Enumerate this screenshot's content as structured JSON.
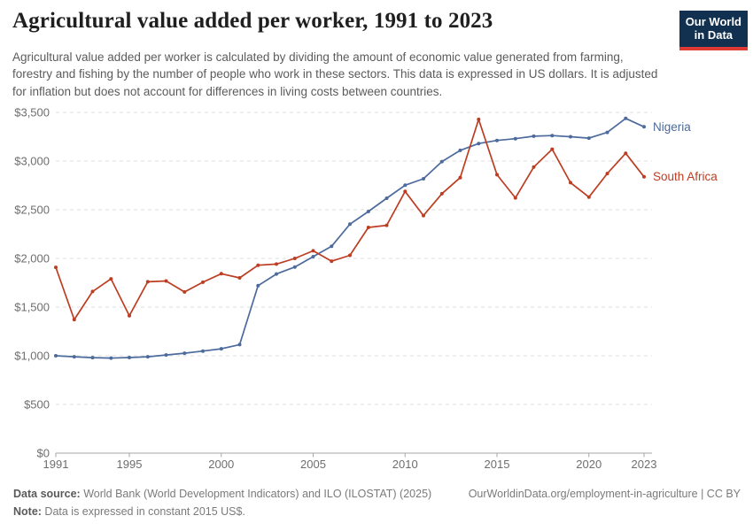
{
  "header": {
    "title": "Agricultural value added per worker, 1991 to 2023",
    "subtitle": "Agricultural value added per worker is calculated by dividing the amount of economic value generated from farming, forestry and fishing by the number of people who work in these sectors. This data is expressed in US dollars. It is adjusted for inflation but does not account for differences in living costs between countries.",
    "logo": {
      "line1": "Our World",
      "line2": "in Data"
    }
  },
  "chart_data": {
    "type": "line",
    "title": "Agricultural value added per worker, 1991 to 2023",
    "unit": "constant 2015 US$",
    "x_range": [
      1991,
      2023
    ],
    "years": [
      1991,
      1992,
      1993,
      1994,
      1995,
      1996,
      1997,
      1998,
      1999,
      2000,
      2001,
      2002,
      2003,
      2004,
      2005,
      2006,
      2007,
      2008,
      2009,
      2010,
      2011,
      2012,
      2013,
      2014,
      2015,
      2016,
      2017,
      2018,
      2019,
      2020,
      2021,
      2022,
      2023
    ],
    "series": [
      {
        "name": "Nigeria",
        "color": "#4C6A9C",
        "values": [
          1000,
          990,
          981,
          976,
          982,
          990,
          1008,
          1026,
          1048,
          1072,
          1115,
          1720,
          1840,
          1912,
          2018,
          2125,
          2352,
          2482,
          2618,
          2752,
          2818,
          2995,
          3110,
          3180,
          3212,
          3230,
          3255,
          3262,
          3250,
          3235,
          3295,
          3438,
          3352
        ]
      },
      {
        "name": "South Africa",
        "color": "#BC3D22",
        "values": [
          1908,
          1372,
          1660,
          1790,
          1412,
          1760,
          1768,
          1655,
          1755,
          1843,
          1800,
          1930,
          1942,
          2000,
          2078,
          1972,
          2032,
          2318,
          2340,
          2688,
          2440,
          2665,
          2830,
          3428,
          2860,
          2622,
          2938,
          3122,
          2778,
          2630,
          2872,
          3080,
          2838
        ]
      }
    ],
    "ylim": [
      0,
      3500
    ],
    "y_ticks": [
      0,
      500,
      1000,
      1500,
      2000,
      2500,
      3000,
      3500
    ],
    "y_tick_labels": [
      "$0",
      "$500",
      "$1,000",
      "$1,500",
      "$2,000",
      "$2,500",
      "$3,000",
      "$3,500"
    ],
    "x_ticks": [
      1991,
      1995,
      2000,
      2005,
      2010,
      2015,
      2020,
      2023
    ],
    "grid": "horizontal dashed",
    "legend": "end-of-line labels",
    "colors": {
      "grid": "#dedede",
      "axis": "#a6a6a6",
      "tick_text": "#6e6e6e"
    }
  },
  "footer": {
    "datasource_label": "Data source:",
    "datasource_text": " World Bank (World Development Indicators) and ILO (ILOSTAT) (2025)",
    "link_text": "OurWorldinData.org/employment-in-agriculture | CC BY",
    "note_label": "Note:",
    "note_text": " Data is expressed in constant 2015 US$."
  }
}
